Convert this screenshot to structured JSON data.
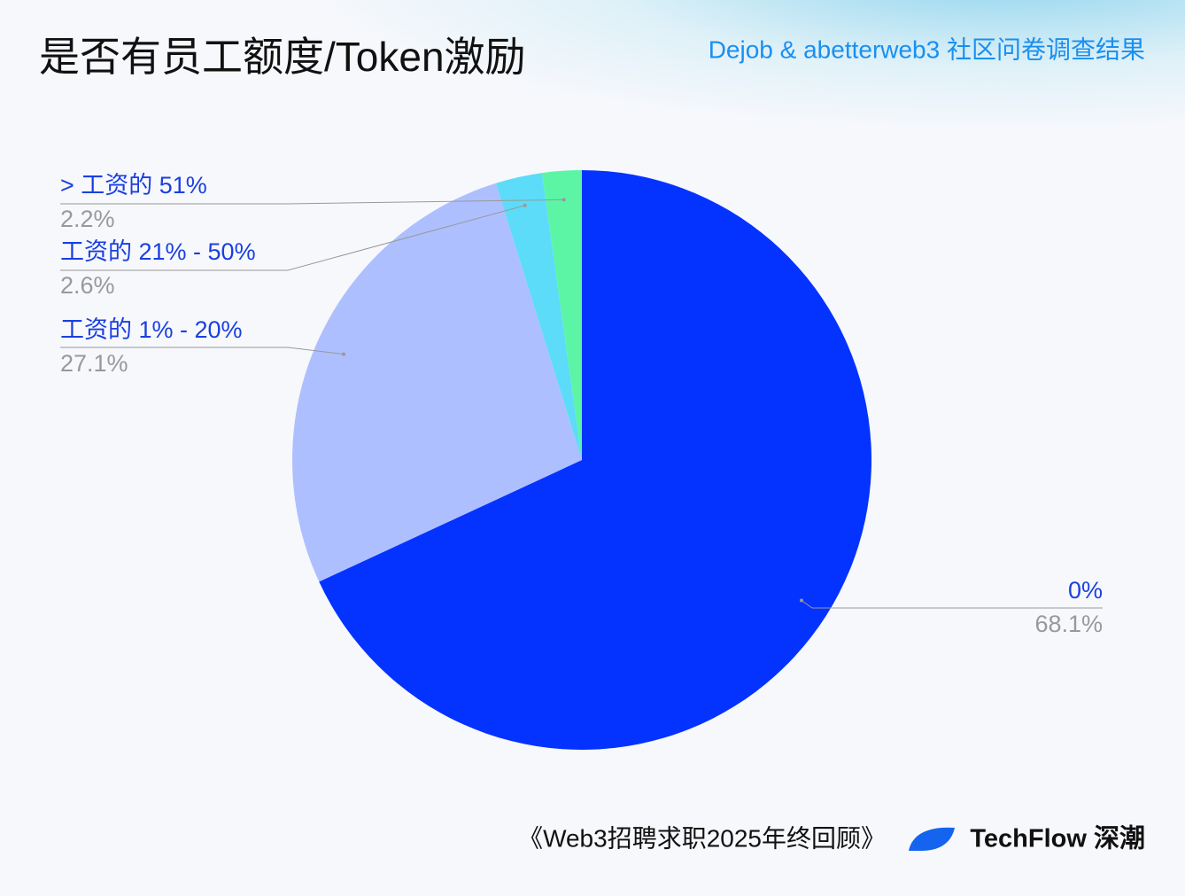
{
  "chart_data": {
    "type": "pie",
    "title": "是否有员工额度/Token激励",
    "subtitle": "Dejob & abetterweb3 社区问卷调查结果",
    "categories": [
      "0%",
      "工资的 1% - 20%",
      "工资的 21% - 50%",
      "> 工资的 51%"
    ],
    "values": [
      68.1,
      27.1,
      2.6,
      2.2
    ],
    "value_labels": [
      "68.1%",
      "27.1%",
      "2.6%",
      "2.2%"
    ],
    "colors": [
      "#0433ff",
      "#aebfff",
      "#5cdcf9",
      "#5cf5a5"
    ],
    "source": "《Web3招聘求职2025年终回顾》",
    "brand": "TechFlow 深潮"
  }
}
